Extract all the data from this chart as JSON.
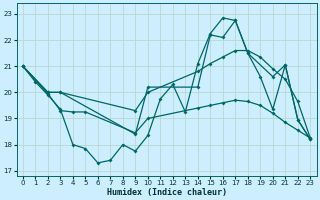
{
  "xlabel": "Humidex (Indice chaleur)",
  "bg_color": "#cceeff",
  "grid_color": "#aaddcc",
  "line_color": "#006666",
  "xlim": [
    -0.5,
    23.5
  ],
  "ylim": [
    16.8,
    23.4
  ],
  "xticks": [
    0,
    1,
    2,
    3,
    4,
    5,
    6,
    7,
    8,
    9,
    10,
    11,
    12,
    13,
    14,
    15,
    16,
    17,
    18,
    19,
    20,
    21,
    22,
    23
  ],
  "yticks": [
    17,
    18,
    19,
    20,
    21,
    22,
    23
  ],
  "line1_x": [
    0,
    1,
    2,
    3,
    4,
    5,
    6,
    7,
    8,
    9,
    10,
    11,
    12,
    13,
    14,
    15,
    16,
    17,
    18,
    19,
    20,
    21,
    22,
    23
  ],
  "line1_y": [
    21.0,
    20.4,
    19.9,
    19.35,
    18.0,
    17.85,
    17.3,
    17.4,
    18.0,
    17.75,
    18.35,
    19.75,
    20.3,
    19.25,
    21.1,
    22.25,
    22.85,
    22.75,
    21.5,
    20.6,
    19.35,
    21.05,
    18.95,
    18.2
  ],
  "line2_x": [
    0,
    2,
    3,
    9,
    10,
    14,
    15,
    16,
    17,
    18,
    20,
    21,
    22,
    23
  ],
  "line2_y": [
    21.0,
    20.0,
    20.0,
    18.4,
    20.2,
    20.2,
    22.2,
    22.1,
    22.75,
    21.5,
    20.6,
    21.05,
    18.95,
    18.2
  ],
  "line3_x": [
    0,
    2,
    3,
    9,
    10,
    14,
    15,
    16,
    17,
    18,
    19,
    20,
    21,
    22,
    23
  ],
  "line3_y": [
    21.0,
    20.0,
    20.0,
    19.3,
    20.0,
    20.8,
    21.1,
    21.35,
    21.6,
    21.6,
    21.35,
    20.9,
    20.5,
    19.65,
    18.25
  ],
  "line4_x": [
    0,
    2,
    3,
    4,
    5,
    9,
    10,
    14,
    15,
    16,
    17,
    18,
    19,
    20,
    21,
    22,
    23
  ],
  "line4_y": [
    21.0,
    19.95,
    19.3,
    19.25,
    19.25,
    18.45,
    19.0,
    19.4,
    19.5,
    19.6,
    19.7,
    19.65,
    19.5,
    19.2,
    18.85,
    18.55,
    18.25
  ]
}
